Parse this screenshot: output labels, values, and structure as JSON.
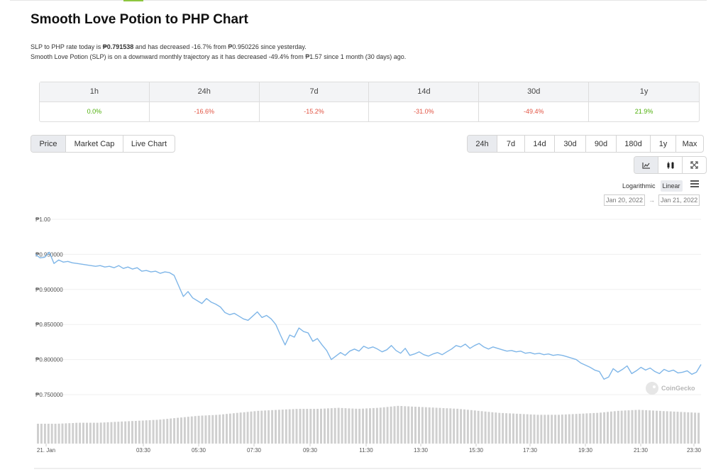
{
  "header": {
    "title": "Smooth Love Potion to PHP Chart"
  },
  "summary": {
    "line1_prefix": "SLP to PHP rate today is ",
    "rate": "₱0.791538",
    "line1_suffix": " and has decreased -16.7% from ₱0.950226 since yesterday.",
    "line2": "Smooth Love Potion (SLP) is on a downward monthly trajectory as it has decreased -49.4% from ₱1.57 since 1 month (30 days) ago."
  },
  "performance": {
    "periods": [
      "1h",
      "24h",
      "7d",
      "14d",
      "30d",
      "1y"
    ],
    "values": [
      "0.0%",
      "-16.6%",
      "-15.2%",
      "-31.0%",
      "-49.4%",
      "21.9%"
    ],
    "positive_color": "#4eaf0a",
    "negative_color": "#e15241"
  },
  "chart_tabs": [
    "Price",
    "Market Cap",
    "Live Chart"
  ],
  "active_chart_tab": "Price",
  "ranges": [
    "24h",
    "7d",
    "14d",
    "30d",
    "90d",
    "180d",
    "1y",
    "Max"
  ],
  "active_range": "24h",
  "chart_types": [
    "line-chart-icon",
    "candlestick-icon",
    "expand-icon"
  ],
  "scale": {
    "log_label": "Logarithmic",
    "linear_label": "Linear",
    "active": "Linear"
  },
  "date_range": {
    "from": "Jan 20, 2022",
    "arrow": "→",
    "to": "Jan 21, 2022"
  },
  "watermark": "CoinGecko",
  "chart_data": {
    "type": "line",
    "y_ticks": [
      "₱1.00",
      "₱0.950000",
      "₱0.900000",
      "₱0.850000",
      "₱0.800000",
      "₱0.750000"
    ],
    "ylim": [
      0.75,
      1.0
    ],
    "x_ticks": [
      "21. Jan",
      "03:30",
      "05:30",
      "07:30",
      "09:30",
      "11:30",
      "13:30",
      "15:30",
      "17:30",
      "19:30",
      "21:30",
      "23:30"
    ],
    "line_color": "#7fb6e8",
    "series": [
      {
        "values": [
          0.95,
          0.945,
          0.946,
          0.953,
          0.937,
          0.942,
          0.939,
          0.94,
          0.938,
          0.937,
          0.936,
          0.935,
          0.934,
          0.933,
          0.934,
          0.932,
          0.933,
          0.931,
          0.934,
          0.93,
          0.932,
          0.929,
          0.931,
          0.926,
          0.927,
          0.925,
          0.926,
          0.923,
          0.925,
          0.924,
          0.92,
          0.905,
          0.89,
          0.897,
          0.888,
          0.884,
          0.88,
          0.887,
          0.882,
          0.879,
          0.875,
          0.867,
          0.864,
          0.866,
          0.862,
          0.858,
          0.856,
          0.862,
          0.868,
          0.86,
          0.863,
          0.858,
          0.85,
          0.835,
          0.821,
          0.835,
          0.832,
          0.845,
          0.84,
          0.838,
          0.826,
          0.83,
          0.821,
          0.813,
          0.8,
          0.805,
          0.81,
          0.806,
          0.812,
          0.815,
          0.812,
          0.819,
          0.816,
          0.818,
          0.815,
          0.811,
          0.814,
          0.82,
          0.813,
          0.809,
          0.816,
          0.806,
          0.808,
          0.811,
          0.807,
          0.805,
          0.808,
          0.81,
          0.807,
          0.811,
          0.815,
          0.82,
          0.818,
          0.822,
          0.816,
          0.82,
          0.823,
          0.818,
          0.815,
          0.818,
          0.816,
          0.814,
          0.812,
          0.813,
          0.811,
          0.812,
          0.809,
          0.81,
          0.808,
          0.809,
          0.807,
          0.808,
          0.806,
          0.807,
          0.806,
          0.804,
          0.802,
          0.8,
          0.795,
          0.792,
          0.789,
          0.785,
          0.783,
          0.772,
          0.775,
          0.787,
          0.782,
          0.786,
          0.791,
          0.78,
          0.784,
          0.789,
          0.785,
          0.788,
          0.783,
          0.78,
          0.786,
          0.783,
          0.785,
          0.781,
          0.782,
          0.784,
          0.779,
          0.782,
          0.793
        ]
      }
    ],
    "volume": [
      0.2,
      0.2,
      0.21,
      0.21,
      0.22,
      0.23,
      0.24,
      0.26,
      0.28,
      0.29,
      0.31,
      0.33,
      0.34,
      0.35,
      0.35,
      0.36,
      0.35,
      0.36,
      0.38,
      0.37,
      0.36,
      0.35,
      0.33,
      0.31,
      0.3,
      0.29,
      0.29,
      0.3,
      0.31,
      0.33,
      0.34,
      0.33,
      0.32,
      0.31
    ]
  }
}
